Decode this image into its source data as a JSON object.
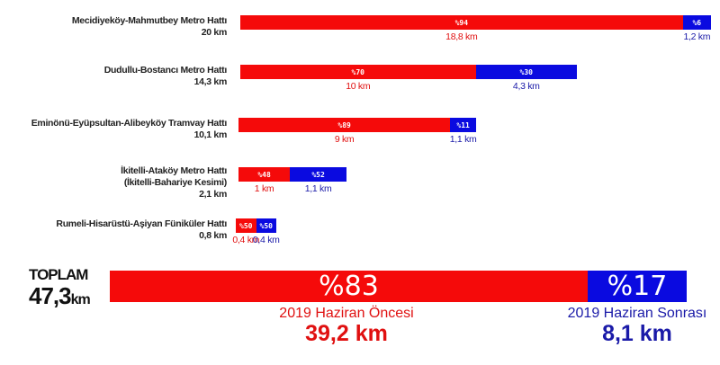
{
  "chart_data": {
    "type": "bar",
    "stacked": true,
    "orientation": "horizontal",
    "colors": {
      "before": "#f50a0a",
      "after": "#0a0ae0"
    },
    "rows": [
      {
        "label": "Mecidiyeköy-Mahmutbey Metro Hattı",
        "total": "20 km",
        "before_pct": "%94",
        "after_pct": "%6",
        "before_km": "18,8 km",
        "after_km": "1,2 km",
        "before": 18.8,
        "after": 1.2
      },
      {
        "label": "Dudullu-Bostancı Metro Hattı",
        "total": "14,3 km",
        "before_pct": "%70",
        "after_pct": "%30",
        "before_km": "10 km",
        "after_km": "4,3 km",
        "before": 10,
        "after": 4.3
      },
      {
        "label": "Eminönü-Eyüpsultan-Alibeyköy Tramvay Hattı",
        "total": "10,1 km",
        "before_pct": "%89",
        "after_pct": "%11",
        "before_km": "9 km",
        "after_km": "1,1 km",
        "before": 9,
        "after": 1.1
      },
      {
        "label": "İkitelli-Ataköy Metro Hattı",
        "label2": "(İkitelli-Bahariye Kesimi)",
        "total": "2,1 km",
        "before_pct": "%48",
        "after_pct": "%52",
        "before_km": "1 km",
        "after_km": "1,1 km",
        "before": 1,
        "after": 1.1
      },
      {
        "label": "Rumeli-Hisarüstü-Aşiyan Füniküler Hattı",
        "total": "0,8 km",
        "before_pct": "%50",
        "after_pct": "%50",
        "before_km": "0,4 km",
        "after_km": "0,4 km",
        "before": 0.4,
        "after": 0.4
      }
    ],
    "total": {
      "label": "TOPLAM",
      "value": "47,3",
      "unit": "km",
      "before_pct": "%83",
      "after_pct": "%17",
      "before_caption": "2019 Haziran Öncesi",
      "before_km": "39,2 km",
      "after_caption": "2019 Haziran Sonrası",
      "after_km": "8,1 km",
      "before": 39.2,
      "after": 8.1
    }
  }
}
